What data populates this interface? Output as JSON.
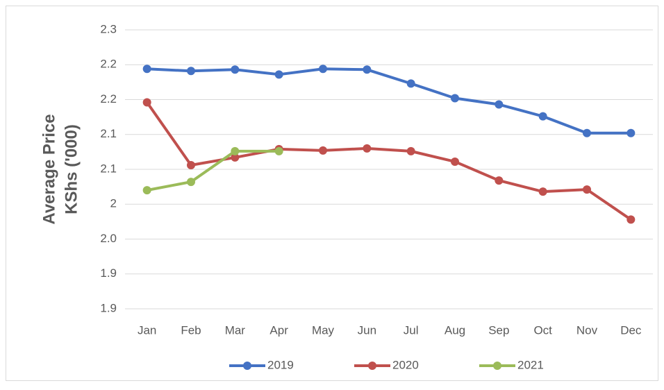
{
  "chart_data": {
    "type": "line",
    "y_label": [
      "Average Price",
      "KShs ('000)"
    ],
    "categories": [
      "Jan",
      "Feb",
      "Mar",
      "Apr",
      "May",
      "Jun",
      "Jul",
      "Aug",
      "Sep",
      "Oct",
      "Nov",
      "Dec"
    ],
    "series": [
      {
        "name": "2019",
        "color": "#4472c4",
        "values": [
          2.194,
          2.191,
          2.193,
          2.186,
          2.194,
          2.193,
          2.173,
          2.152,
          2.143,
          2.126,
          2.102,
          2.102
        ]
      },
      {
        "name": "2020",
        "color": "#c0504d",
        "values": [
          2.146,
          2.056,
          2.067,
          2.079,
          2.077,
          2.08,
          2.076,
          2.061,
          2.034,
          2.018,
          2.021,
          1.978
        ]
      },
      {
        "name": "2021",
        "color": "#9bbb59",
        "values": [
          2.02,
          2.032,
          2.076,
          2.076,
          null,
          null,
          null,
          null,
          null,
          null,
          null,
          null
        ]
      }
    ],
    "ylim": [
      1.85,
      2.25
    ],
    "yticks": [
      {
        "value": 1.85,
        "label": "1.9"
      },
      {
        "value": 1.9,
        "label": "1.9"
      },
      {
        "value": 1.95,
        "label": "2.0"
      },
      2.0,
      {
        "value": 2.05,
        "label": "2.1"
      },
      {
        "value": 2.1,
        "label": "2.1"
      },
      {
        "value": 2.15,
        "label": "2.2"
      },
      {
        "value": 2.2,
        "label": "2.2"
      },
      {
        "value": 2.25,
        "label": "2.3"
      }
    ],
    "grid": true
  }
}
